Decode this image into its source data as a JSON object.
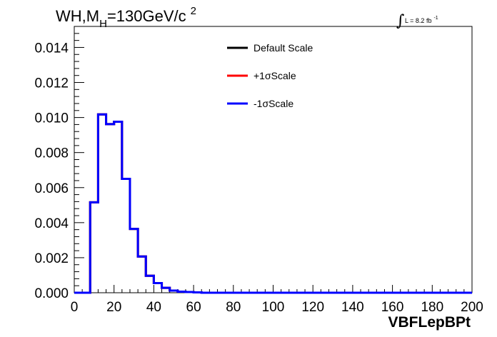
{
  "chart_data": {
    "type": "histogram-step",
    "title": {
      "prefix": "WH,M",
      "sub": "H",
      "mid": "=130GeV/c",
      "sup": "2"
    },
    "lumi": {
      "symbol": "∫",
      "text": "L = 8.2 fb",
      "sup": "-1"
    },
    "xlabel": "VBFLepBPt",
    "xlim": [
      0,
      200
    ],
    "ylim": [
      0,
      0.0152
    ],
    "xticks": [
      0,
      20,
      40,
      60,
      80,
      100,
      120,
      140,
      160,
      180,
      200
    ],
    "xtick_labels": [
      "0",
      "20",
      "40",
      "60",
      "80",
      "100",
      "120",
      "140",
      "160",
      "180",
      "200"
    ],
    "yticks": [
      0.0,
      0.002,
      0.004,
      0.006,
      0.008,
      0.01,
      0.012,
      0.014
    ],
    "ytick_labels": [
      "0.000",
      "0.002",
      "0.004",
      "0.006",
      "0.008",
      "0.010",
      "0.012",
      "0.014"
    ],
    "bin_edges": [
      0,
      4,
      8,
      12,
      16,
      20,
      24,
      28,
      32,
      36,
      40,
      44,
      48,
      52,
      56,
      60,
      64,
      200
    ],
    "legend": [
      {
        "label": "Default Scale",
        "color": "#000000"
      },
      {
        "label": "+1σScale",
        "color": "#ff0000"
      },
      {
        "label": "-1σScale",
        "color": "#0000ff"
      }
    ],
    "series": [
      {
        "name": "Default Scale",
        "color": "#000000",
        "values": [
          0,
          0,
          0.00516,
          0.01018,
          0.00962,
          0.00976,
          0.0065,
          0.00364,
          0.00207,
          0.00097,
          0.00055,
          0.00028,
          0.00012,
          6e-05,
          4e-05,
          2e-05,
          0.0
        ]
      },
      {
        "name": "+1σScale",
        "color": "#ff0000",
        "values": [
          0,
          0,
          0.00516,
          0.01018,
          0.00962,
          0.00976,
          0.0065,
          0.00364,
          0.00207,
          0.00097,
          0.00055,
          0.00028,
          0.00012,
          6e-05,
          4e-05,
          2e-05,
          0.0
        ]
      },
      {
        "name": "-1σScale",
        "color": "#0000ff",
        "values": [
          0,
          0,
          0.00516,
          0.01018,
          0.00962,
          0.00976,
          0.0065,
          0.00364,
          0.00207,
          0.00097,
          0.00055,
          0.00028,
          0.00012,
          6e-05,
          4e-05,
          2e-05,
          0.0
        ]
      }
    ],
    "grid": false,
    "legend_position": "top-center"
  }
}
